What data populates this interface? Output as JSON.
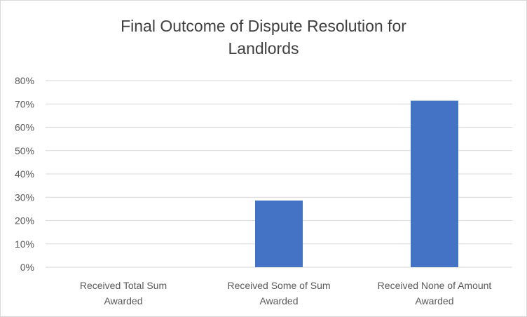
{
  "chart_data": {
    "type": "bar",
    "title_lines": [
      "Final Outcome of Dispute Resolution for",
      "Landlords"
    ],
    "categories": [
      [
        "Received Total Sum",
        "Awarded"
      ],
      [
        "Received Some of Sum",
        "Awarded"
      ],
      [
        "Received None of Amount",
        "Awarded"
      ]
    ],
    "values": [
      0,
      28.6,
      71.4
    ],
    "y_ticks": [
      "0%",
      "10%",
      "20%",
      "30%",
      "40%",
      "50%",
      "60%",
      "70%",
      "80%"
    ],
    "ylim": [
      0,
      80
    ],
    "gridlines": true,
    "legend": "none",
    "bar_color": "#4472c4",
    "grid_color": "#d9d9d9"
  }
}
